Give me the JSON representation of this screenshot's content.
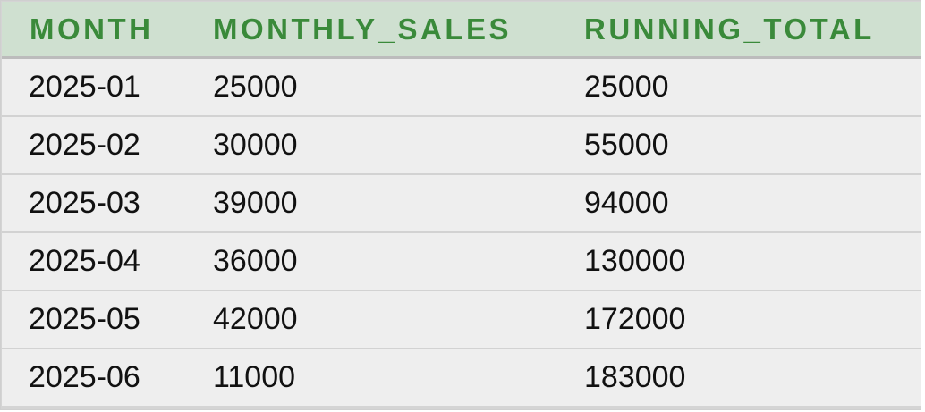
{
  "table": {
    "headers": [
      "MONTH",
      "MONTHLY_SALES",
      "RUNNING_TOTAL"
    ],
    "rows": [
      [
        "2025-01",
        "25000",
        "25000"
      ],
      [
        "2025-02",
        "30000",
        "55000"
      ],
      [
        "2025-03",
        "39000",
        "94000"
      ],
      [
        "2025-04",
        "36000",
        "130000"
      ],
      [
        "2025-05",
        "42000",
        "172000"
      ],
      [
        "2025-06",
        "11000",
        "183000"
      ]
    ]
  },
  "colors": {
    "header_bg": "#cfe0d0",
    "header_text": "#3a8a3a",
    "row_bg": "#eeeeee",
    "row_text": "#111111"
  }
}
